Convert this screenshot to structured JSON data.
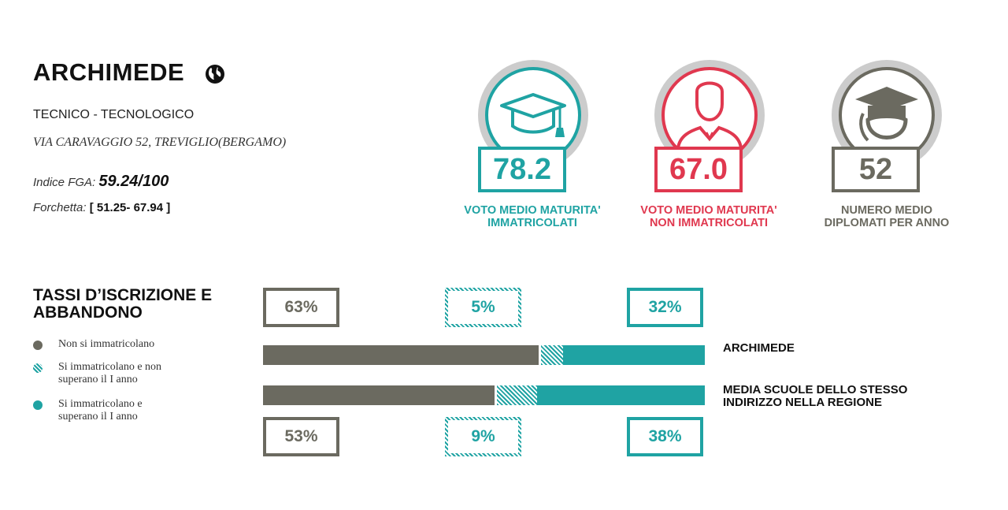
{
  "school": {
    "name": "ARCHIMEDE",
    "type": "TECNICO - TECNOLOGICO",
    "address": "VIA CARAVAGGIO 52, TREVIGLIO(BERGAMO)",
    "fga_label": "Indice FGA:",
    "fga_value": "59.24/100",
    "range_label": "Forchetta:",
    "range_value": "[ 51.25- 67.94 ]"
  },
  "kpis": [
    {
      "value": "78.2",
      "label_line1": "VOTO MEDIO MATURITA'",
      "label_line2": "IMMATRICOLATI",
      "color": "#1fa3a3",
      "icon": "graduation-cap-icon"
    },
    {
      "value": "67.0",
      "label_line1": "VOTO MEDIO MATURITA'",
      "label_line2": "NON IMMATRICOLATI",
      "color": "#e0384f",
      "icon": "person-icon"
    },
    {
      "value": "52",
      "label_line1": "NUMERO MEDIO",
      "label_line2": "DIPLOMATI PER ANNO",
      "color": "#6b6a60",
      "icon": "graduate-head-icon"
    }
  ],
  "rates": {
    "title_line1": "TASSI D’ISCRIZIONE E",
    "title_line2": "ABBANDONO",
    "legend": [
      {
        "line1": "Non si immatricolano",
        "line2": "",
        "color": "#6b6a60",
        "pattern": "solid"
      },
      {
        "line1": "Si immatricolano e non",
        "line2": "superano il I anno",
        "color": "#1fa3a3",
        "pattern": "hatched"
      },
      {
        "line1": "Si immatricolano e",
        "line2": "superano il I anno",
        "color": "#1fa3a3",
        "pattern": "solid"
      }
    ]
  },
  "chart_data": {
    "type": "bar",
    "orientation": "horizontal",
    "stacked": true,
    "categories": [
      "ARCHIMEDE",
      "MEDIA SCUOLE DELLO STESSO INDIRIZZO NELLA REGIONE"
    ],
    "category_lines": [
      [
        "ARCHIMEDE"
      ],
      [
        "MEDIA SCUOLE DELLO STESSO",
        "INDIRIZZO NELLA REGIONE"
      ]
    ],
    "series": [
      {
        "name": "Non si immatricolano",
        "values": [
          63,
          53
        ],
        "labels": [
          "63%",
          "53%"
        ],
        "color": "#6b6a60",
        "pattern": "solid"
      },
      {
        "name": "Si immatricolano e non superano il I anno",
        "values": [
          5,
          9
        ],
        "labels": [
          "5%",
          "9%"
        ],
        "color": "#1fa3a3",
        "pattern": "hatched"
      },
      {
        "name": "Si immatricolano e superano il I anno",
        "values": [
          32,
          38
        ],
        "labels": [
          "32%",
          "38%"
        ],
        "color": "#1fa3a3",
        "pattern": "solid"
      }
    ],
    "xlim": [
      0,
      100
    ]
  }
}
